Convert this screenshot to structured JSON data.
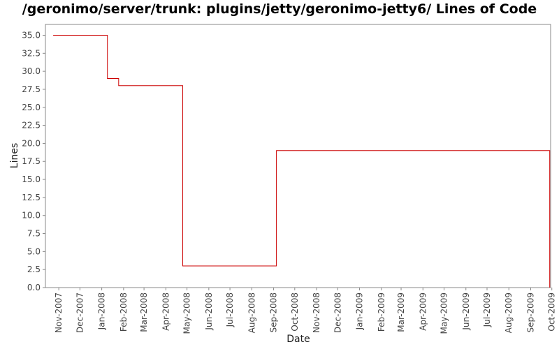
{
  "chart_data": {
    "type": "line",
    "title": "/geronimo/server/trunk: plugins/jetty/geronimo-jetty6/ Lines of Code",
    "xlabel": "Date",
    "ylabel": "Lines",
    "x_ticks": [
      "Nov-2007",
      "Dec-2007",
      "Jan-2008",
      "Feb-2008",
      "Mar-2008",
      "Apr-2008",
      "May-2008",
      "Jun-2008",
      "Jul-2008",
      "Aug-2008",
      "Sep-2008",
      "Oct-2008",
      "Nov-2008",
      "Dec-2008",
      "Jan-2009",
      "Feb-2009",
      "Mar-2009",
      "Apr-2009",
      "May-2009",
      "Jun-2009",
      "Jul-2009",
      "Aug-2009",
      "Sep-2009",
      "Oct-2009"
    ],
    "y_ticks": [
      "0.0",
      "2.5",
      "5.0",
      "7.5",
      "10.0",
      "12.5",
      "15.0",
      "17.5",
      "20.0",
      "22.5",
      "25.0",
      "27.5",
      "30.0",
      "32.5",
      "35.0"
    ],
    "ylim": [
      0,
      36.5
    ],
    "grid": false,
    "line_color": "#cc0000",
    "series": [
      {
        "step": "post",
        "points": [
          {
            "x": "2007-10-24",
            "y": 35
          },
          {
            "x": "2008-01-09",
            "y": 29
          },
          {
            "x": "2008-01-25",
            "y": 28
          },
          {
            "x": "2008-04-25",
            "y": 3
          },
          {
            "x": "2008-09-05",
            "y": 19
          },
          {
            "x": "2009-09-28",
            "y": 0
          }
        ]
      }
    ]
  }
}
